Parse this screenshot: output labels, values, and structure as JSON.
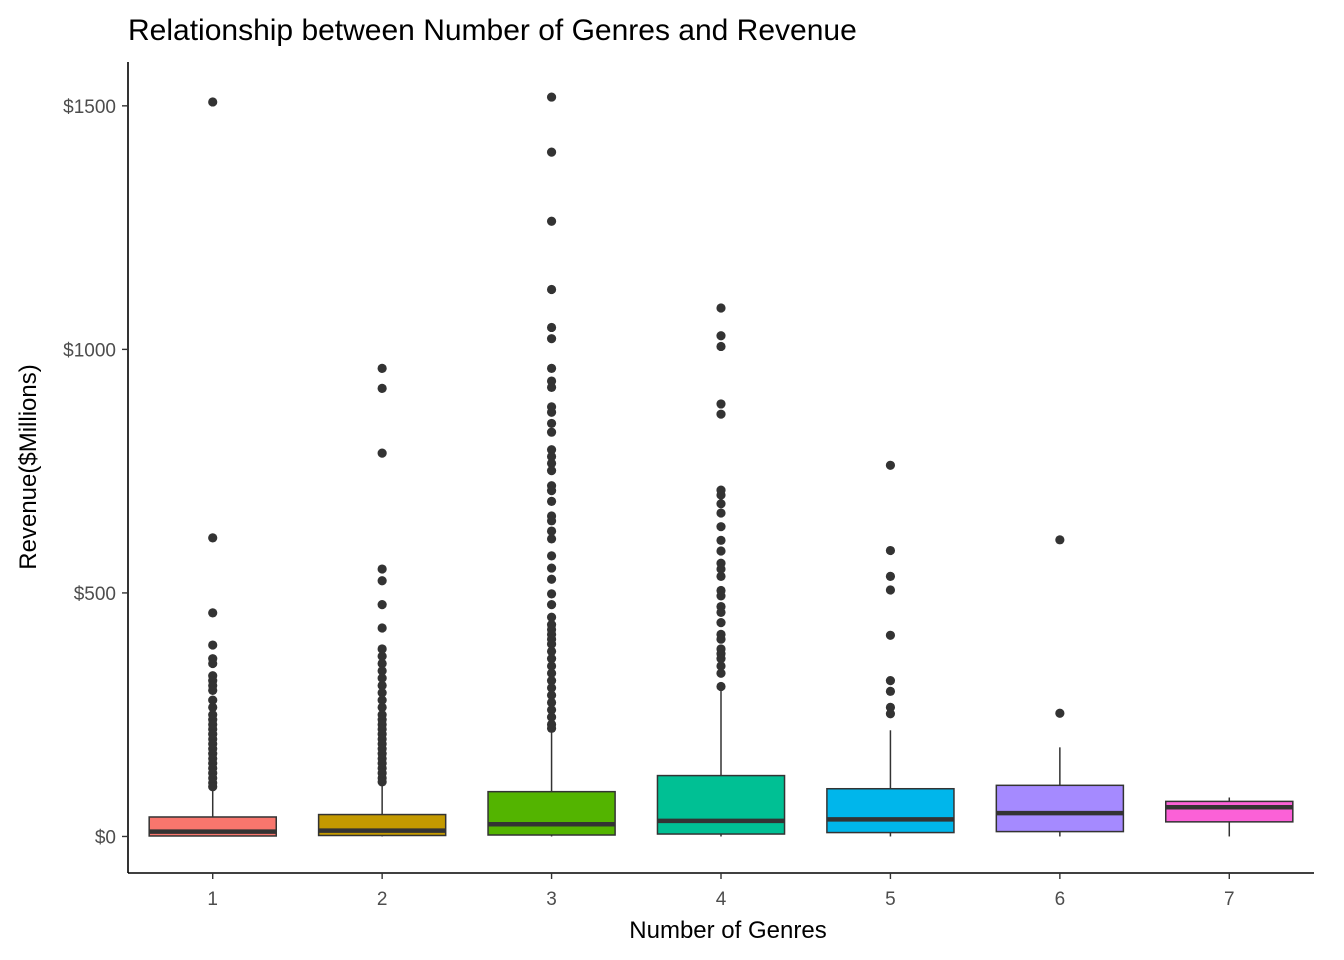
{
  "chart_data": {
    "type": "boxplot",
    "title": "Relationship between Number of Genres and Revenue",
    "xlabel": "Number of Genres",
    "ylabel": "Revenue($Millions)",
    "ylim": [
      -75,
      1590
    ],
    "y_ticks": [
      0,
      500,
      1000,
      1500
    ],
    "y_tick_labels": [
      "$0",
      "$500",
      "$1000",
      "$1500"
    ],
    "grid": false,
    "legend": "none",
    "categories": [
      "1",
      "2",
      "3",
      "4",
      "5",
      "6",
      "7"
    ],
    "boxes": [
      {
        "category": "1",
        "color": "#F8766D",
        "min": 0,
        "q1": 1,
        "median": 10,
        "q3": 40,
        "max": 98,
        "outliers": [
          1508,
          613,
          459,
          393,
          365,
          355,
          330,
          320,
          310,
          300,
          280,
          265,
          250,
          240,
          230,
          220,
          210,
          200,
          190,
          180,
          170,
          160,
          150,
          140,
          130,
          120,
          110,
          102
        ]
      },
      {
        "category": "2",
        "color": "#C49A00",
        "min": 0,
        "q1": 2,
        "median": 12,
        "q3": 45,
        "max": 108,
        "outliers": [
          961,
          920,
          787,
          549,
          525,
          476,
          428,
          385,
          370,
          355,
          340,
          325,
          310,
          295,
          280,
          265,
          250,
          240,
          230,
          220,
          210,
          200,
          190,
          180,
          170,
          160,
          150,
          140,
          130,
          120,
          112
        ]
      },
      {
        "category": "3",
        "color": "#53B400",
        "min": 0,
        "q1": 3,
        "median": 25,
        "q3": 92,
        "max": 218,
        "outliers": [
          1518,
          1405,
          1263,
          1123,
          1045,
          1022,
          961,
          935,
          922,
          882,
          871,
          848,
          830,
          794,
          780,
          766,
          751,
          720,
          710,
          688,
          658,
          648,
          627,
          611,
          576,
          551,
          528,
          498,
          476,
          450,
          435,
          425,
          415,
          405,
          395,
          380,
          365,
          350,
          335,
          320,
          305,
          290,
          275,
          260,
          245,
          230,
          222
        ]
      },
      {
        "category": "4",
        "color": "#00C094",
        "min": 0,
        "q1": 5,
        "median": 32,
        "q3": 125,
        "max": 300,
        "outliers": [
          1085,
          1028,
          1006,
          888,
          867,
          711,
          701,
          683,
          664,
          636,
          608,
          586,
          561,
          549,
          534,
          505,
          494,
          472,
          460,
          439,
          415,
          405,
          385,
          375,
          365,
          350,
          335,
          308
        ]
      },
      {
        "category": "5",
        "color": "#00B6EB",
        "min": 0,
        "q1": 8,
        "median": 35,
        "q3": 98,
        "max": 218,
        "outliers": [
          762,
          587,
          534,
          506,
          413,
          320,
          298,
          265,
          252
        ]
      },
      {
        "category": "6",
        "color": "#A58AFF",
        "min": 0,
        "q1": 10,
        "median": 48,
        "q3": 105,
        "max": 183,
        "outliers": [
          609,
          253
        ]
      },
      {
        "category": "7",
        "color": "#FB61D7",
        "min": 0,
        "q1": 30,
        "median": 60,
        "q3": 72,
        "max": 80,
        "outliers": []
      }
    ]
  }
}
